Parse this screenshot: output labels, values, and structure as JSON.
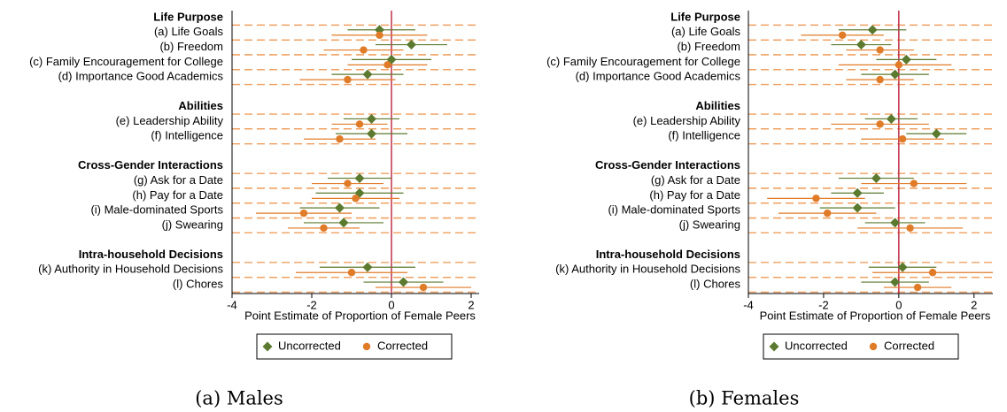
{
  "chart_data": [
    {
      "type": "coef",
      "title": "(a) Males",
      "xlabel": "Point Estimate of Proportion of Female Peers",
      "groups": [
        {
          "label": "Life Purpose",
          "categories": [
            "(a) Life Goals",
            "(b) Freedom",
            "(c) Family Encouragement for College",
            "(d) Importance Good Academics"
          ]
        },
        {
          "label": "Abilities",
          "categories": [
            "(e) Leadership Ability",
            "(f) Intelligence"
          ]
        },
        {
          "label": "Cross-Gender Interactions",
          "categories": [
            "(g) Ask for a Date",
            "(h) Pay for a Date",
            "(i) Male-dominated Sports",
            "(j) Swearing"
          ]
        },
        {
          "label": "Intra-household Decisions",
          "categories": [
            "(k) Authority in Household Decisions",
            "(l) Chores"
          ]
        }
      ],
      "series": [
        {
          "name": "Uncorrected",
          "color": "#5b7a2f",
          "marker": "diamond",
          "values": [
            -0.3,
            0.5,
            0.0,
            -0.6,
            -0.5,
            -0.5,
            -0.8,
            -0.8,
            -1.3,
            -1.2,
            -0.6,
            0.3
          ],
          "ci_low": [
            -1.1,
            -0.4,
            -1.0,
            -1.5,
            -1.2,
            -1.4,
            -1.6,
            -1.9,
            -2.3,
            -2.2,
            -1.8,
            -0.7
          ],
          "ci_high": [
            0.6,
            1.4,
            1.0,
            0.3,
            0.2,
            0.4,
            0.0,
            0.3,
            -0.3,
            -0.2,
            0.6,
            1.3
          ]
        },
        {
          "name": "Corrected",
          "color": "#e07b28",
          "marker": "circle",
          "values": [
            -0.3,
            -0.7,
            -0.1,
            -1.1,
            -0.8,
            -1.3,
            -1.1,
            -0.9,
            -2.2,
            -1.7,
            -1.0,
            0.8
          ],
          "ci_low": [
            -1.5,
            -1.7,
            -1.1,
            -2.3,
            -1.5,
            -2.2,
            -2.0,
            -2.0,
            -3.4,
            -2.6,
            -2.4,
            -0.4
          ],
          "ci_high": [
            0.9,
            0.3,
            0.9,
            0.1,
            -0.1,
            -0.4,
            -0.2,
            0.2,
            -1.0,
            -0.8,
            0.4,
            2.0
          ]
        }
      ],
      "xlim": [
        -4,
        2.2
      ],
      "xticks": [
        -4,
        -2,
        0,
        2
      ],
      "xline": 0,
      "xline_color": "#c0304a"
    },
    {
      "type": "coef",
      "title": "(b) Females",
      "xlabel": "Point Estimate of Proportion of Female Peers",
      "groups": [
        {
          "label": "Life Purpose",
          "categories": [
            "(a) Life Goals",
            "(b) Freedom",
            "(c) Family Encouragement for College",
            "(d) Importance Good Academics"
          ]
        },
        {
          "label": "Abilities",
          "categories": [
            "(e) Leadership Ability",
            "(f) Intelligence"
          ]
        },
        {
          "label": "Cross-Gender Interactions",
          "categories": [
            "(g) Ask for a Date",
            "(h) Pay for a Date",
            "(i) Male-dominated Sports",
            "(j) Swearing"
          ]
        },
        {
          "label": "Intra-household Decisions",
          "categories": [
            "(k) Authority in Household Decisions",
            "(l) Chores"
          ]
        }
      ],
      "series": [
        {
          "name": "Uncorrected",
          "color": "#5b7a2f",
          "marker": "diamond",
          "values": [
            -0.7,
            -1.0,
            0.2,
            -0.1,
            -0.2,
            1.0,
            -0.6,
            -1.1,
            -1.1,
            -0.1,
            0.1,
            -0.1
          ],
          "ci_low": [
            -1.6,
            -1.8,
            -0.6,
            -1.0,
            -0.9,
            0.2,
            -1.6,
            -1.8,
            -2.1,
            -0.9,
            -0.8,
            -1.0
          ],
          "ci_high": [
            0.2,
            -0.2,
            1.0,
            0.8,
            0.5,
            1.8,
            0.4,
            -0.4,
            -0.1,
            0.7,
            1.0,
            0.8
          ]
        },
        {
          "name": "Corrected",
          "color": "#e07b28",
          "marker": "circle",
          "values": [
            -1.5,
            -0.5,
            0.0,
            -0.5,
            -0.5,
            0.1,
            0.4,
            -2.2,
            -1.9,
            0.3,
            0.9,
            0.5
          ],
          "ci_low": [
            -2.6,
            -1.4,
            -1.6,
            -1.4,
            -1.8,
            -1.0,
            -1.0,
            -3.5,
            -3.2,
            -1.1,
            -0.7,
            -0.4
          ],
          "ci_high": [
            -0.4,
            0.4,
            1.4,
            0.4,
            0.8,
            1.2,
            1.8,
            -0.9,
            -0.6,
            1.7,
            2.5,
            1.4
          ]
        }
      ],
      "xlim": [
        -4,
        2.5
      ],
      "xticks": [
        -4,
        -2,
        0,
        2
      ],
      "xline": 0,
      "xline_color": "#c0304a"
    }
  ]
}
